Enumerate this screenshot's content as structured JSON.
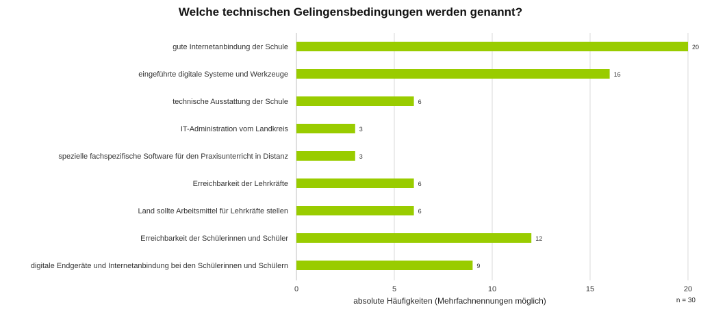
{
  "chart_data": {
    "type": "bar",
    "orientation": "horizontal",
    "title": "Welche technischen Gelingensbedingungen  werden genannt?",
    "xlabel": "absolute Häufigkeiten (Mehrfachnennungen möglich)",
    "ylabel": "",
    "note": "n = 30",
    "xlim": [
      0,
      20
    ],
    "xticks": [
      0,
      5,
      10,
      15,
      20
    ],
    "grid": true,
    "bar_color": "#99cc00",
    "categories": [
      "gute Internetanbindung  der Schule",
      "eingeführte digitale Systeme und Werkzeuge",
      "technische Ausstattung der Schule",
      "IT-Administration vom Landkreis",
      "spezielle fachspezifische Software für den Praxisunterricht in Distanz",
      "Erreichbarkeit der Lehrkräfte",
      "Land sollte Arbeitsmittel für Lehrkräfte stellen",
      "Erreichbarkeit der Schülerinnen und Schüler",
      "digitale Endgeräte und Internetanbindung bei den Schülerinnen und Schülern"
    ],
    "values": [
      20,
      16,
      6,
      3,
      3,
      6,
      6,
      12,
      9
    ]
  }
}
